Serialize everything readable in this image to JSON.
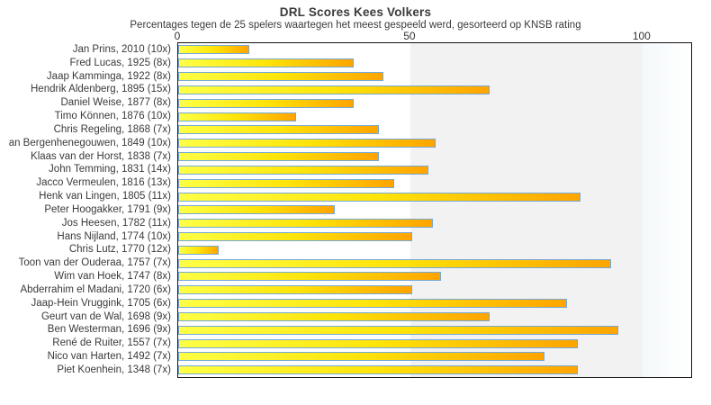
{
  "title": "DRL Scores Kees Volkers",
  "subtitle": "Percentages tegen de 25 spelers waartegen het meest gespeeld werd, gesorteerd op KNSB rating",
  "chart_data": {
    "type": "bar",
    "orientation": "horizontal",
    "title": "DRL Scores Kees Volkers",
    "subtitle": "Percentages tegen de 25 spelers waartegen het meest gespeeld werd, gesorteerd op KNSB rating",
    "xlabel": "",
    "ylabel": "",
    "xlim": [
      0,
      110.5
    ],
    "xticks": [
      0,
      50,
      100
    ],
    "grid": false,
    "legend": "none",
    "categories": [
      "Jan Prins, 2010 (10x)",
      "Fred Lucas, 1925 (8x)",
      "Jaap Kamminga, 1922 (8x)",
      "Hendrik Aldenberg, 1895 (15x)",
      "Daniel Weise, 1877 (8x)",
      "Timo Können, 1876 (10x)",
      "Chris Regeling, 1868 (7x)",
      "an Bergenhenegouwen, 1849 (10x)",
      "Klaas van der Horst, 1838 (7x)",
      "John Temming, 1831 (14x)",
      "Jacco Vermeulen, 1816 (13x)",
      "Henk van Lingen, 1805 (11x)",
      "Peter Hoogakker, 1791 (9x)",
      "Jos Heesen, 1782 (11x)",
      "Hans Nijland, 1774 (10x)",
      "Chris Lutz, 1770 (12x)",
      "Toon van der Ouderaa, 1757 (7x)",
      "Wim van Hoek, 1747 (8x)",
      "Abderrahim el Madani, 1720 (6x)",
      "Jaap-Hein Vruggink, 1705 (6x)",
      "Geurt van de Wal, 1698 (9x)",
      "Ben Westerman, 1696 (9x)",
      "René de Ruiter, 1557 (7x)",
      "Nico van Harten, 1492 (7x)",
      "Piet Koenhein, 1348 (7x)"
    ],
    "values": [
      15,
      37.5,
      43.75,
      66.67,
      37.5,
      25,
      42.86,
      55,
      42.86,
      53.57,
      46.15,
      86.36,
      33.33,
      54.55,
      50,
      8.33,
      92.86,
      56.25,
      50,
      83.33,
      66.67,
      94.44,
      85.71,
      78.57,
      85.71
    ],
    "colors": {
      "bar_gradient": [
        "#ffff46",
        "#ffe409",
        "#ffa400"
      ],
      "bar_border": "#74a9d8",
      "band_50_100": "#f2f2f2",
      "band_over_100": [
        "#f4f9fc",
        "#ffffff"
      ],
      "plot_border": "#141414",
      "text": "#3a3a3a"
    },
    "bands": [
      {
        "from": 50,
        "to": 100
      },
      {
        "from": 100,
        "to": 110.5
      }
    ]
  }
}
